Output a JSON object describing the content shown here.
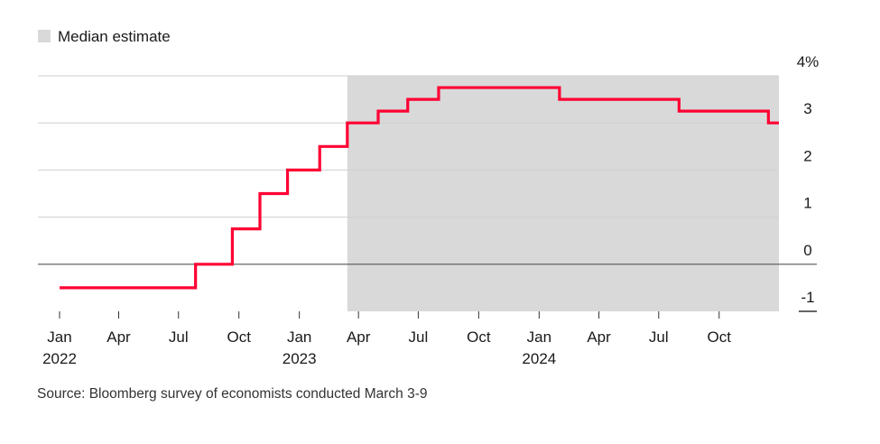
{
  "chart_data": {
    "type": "line",
    "step": true,
    "legend": [
      {
        "label": "Median estimate",
        "color": "#d9d9d9",
        "position": "top-left"
      }
    ],
    "shaded_region": {
      "label": "Median estimate",
      "x_start": "2023-03-15",
      "x_end": "2024-12-31",
      "color": "#d9d9d9"
    },
    "ylim": [
      -1,
      4
    ],
    "y_ticks": [
      {
        "value": 4,
        "label": "4%"
      },
      {
        "value": 3,
        "label": "3"
      },
      {
        "value": 2,
        "label": "2"
      },
      {
        "value": 1,
        "label": "1"
      },
      {
        "value": 0,
        "label": "0"
      },
      {
        "value": -1,
        "label": "-1"
      }
    ],
    "xlim": [
      "2022-01-01",
      "2024-12-31"
    ],
    "x_ticks": [
      {
        "date": "2022-01-01",
        "label": "Jan",
        "year": "2022"
      },
      {
        "date": "2022-04-01",
        "label": "Apr",
        "year": ""
      },
      {
        "date": "2022-07-01",
        "label": "Jul",
        "year": ""
      },
      {
        "date": "2022-10-01",
        "label": "Oct",
        "year": ""
      },
      {
        "date": "2023-01-01",
        "label": "Jan",
        "year": "2023"
      },
      {
        "date": "2023-04-01",
        "label": "Apr",
        "year": ""
      },
      {
        "date": "2023-07-01",
        "label": "Jul",
        "year": ""
      },
      {
        "date": "2023-10-01",
        "label": "Oct",
        "year": ""
      },
      {
        "date": "2024-01-01",
        "label": "Jan",
        "year": "2024"
      },
      {
        "date": "2024-04-01",
        "label": "Apr",
        "year": ""
      },
      {
        "date": "2024-07-01",
        "label": "Jul",
        "year": ""
      },
      {
        "date": "2024-10-01",
        "label": "Oct",
        "year": ""
      }
    ],
    "grid": true,
    "series": [
      {
        "color": "#ff0033",
        "points": [
          {
            "x": "2022-01-01",
            "y": -0.5
          },
          {
            "x": "2022-07-27",
            "y": 0
          },
          {
            "x": "2022-09-21",
            "y": 0.75
          },
          {
            "x": "2022-11-02",
            "y": 1.5
          },
          {
            "x": "2022-12-14",
            "y": 2.0
          },
          {
            "x": "2023-02-01",
            "y": 2.5
          },
          {
            "x": "2023-03-15",
            "y": 3.0
          },
          {
            "x": "2023-05-01",
            "y": 3.25
          },
          {
            "x": "2023-06-15",
            "y": 3.5
          },
          {
            "x": "2023-08-01",
            "y": 3.75
          },
          {
            "x": "2024-02-01",
            "y": 3.5
          },
          {
            "x": "2024-08-01",
            "y": 3.25
          },
          {
            "x": "2024-12-15",
            "y": 3.0
          },
          {
            "x": "2024-12-31",
            "y": 3.0
          }
        ]
      }
    ]
  },
  "source": "Source: Bloomberg survey of economists conducted March 3-9"
}
